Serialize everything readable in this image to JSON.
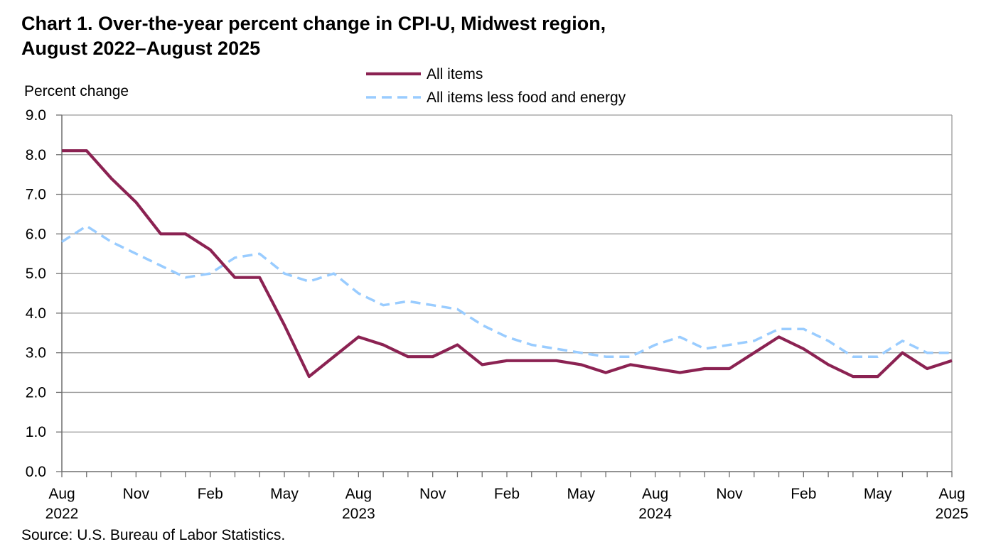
{
  "chart_data": {
    "type": "line",
    "title_line1": "Chart 1. Over-the-year percent change in CPI-U, Midwest region,",
    "title_line2": "August 2022–August 2025",
    "ylabel": "Percent change",
    "source": "Source: U.S. Bureau of Labor Statistics.",
    "ylim": [
      0,
      9
    ],
    "ytick_labels": [
      "0.0",
      "1.0",
      "2.0",
      "3.0",
      "4.0",
      "5.0",
      "6.0",
      "7.0",
      "8.0",
      "9.0"
    ],
    "x_months": 37,
    "xtick_labels": [
      {
        "index": 0,
        "month": "Aug",
        "year": "2022"
      },
      {
        "index": 3,
        "month": "Nov",
        "year": ""
      },
      {
        "index": 6,
        "month": "Feb",
        "year": ""
      },
      {
        "index": 9,
        "month": "May",
        "year": ""
      },
      {
        "index": 12,
        "month": "Aug",
        "year": "2023"
      },
      {
        "index": 15,
        "month": "Nov",
        "year": ""
      },
      {
        "index": 18,
        "month": "Feb",
        "year": ""
      },
      {
        "index": 21,
        "month": "May",
        "year": ""
      },
      {
        "index": 24,
        "month": "Aug",
        "year": "2024"
      },
      {
        "index": 27,
        "month": "Nov",
        "year": ""
      },
      {
        "index": 30,
        "month": "Feb",
        "year": ""
      },
      {
        "index": 33,
        "month": "May",
        "year": ""
      },
      {
        "index": 36,
        "month": "Aug",
        "year": "2025"
      }
    ],
    "legend": {
      "position": "top-center"
    },
    "series": [
      {
        "name": "All items",
        "color": "#8B2252",
        "style": "solid",
        "values": [
          8.1,
          8.1,
          7.4,
          6.8,
          6.0,
          6.0,
          5.6,
          4.9,
          4.9,
          3.7,
          2.4,
          2.9,
          3.4,
          3.2,
          2.9,
          2.9,
          3.2,
          2.7,
          2.8,
          2.8,
          2.8,
          2.7,
          2.5,
          2.7,
          2.6,
          2.5,
          2.6,
          2.6,
          3.0,
          3.4,
          3.1,
          2.7,
          2.4,
          2.4,
          3.0,
          2.6,
          2.8
        ]
      },
      {
        "name": "All items less food and energy",
        "color": "#99CCFF",
        "style": "dashed",
        "values": [
          5.8,
          6.2,
          5.8,
          5.5,
          5.2,
          4.9,
          5.0,
          5.4,
          5.5,
          5.0,
          4.8,
          5.0,
          4.5,
          4.2,
          4.3,
          4.2,
          4.1,
          3.7,
          3.4,
          3.2,
          3.1,
          3.0,
          2.9,
          2.9,
          3.2,
          3.4,
          3.1,
          3.2,
          3.3,
          3.6,
          3.6,
          3.3,
          2.9,
          2.9,
          3.3,
          3.0,
          3.0
        ]
      }
    ]
  }
}
